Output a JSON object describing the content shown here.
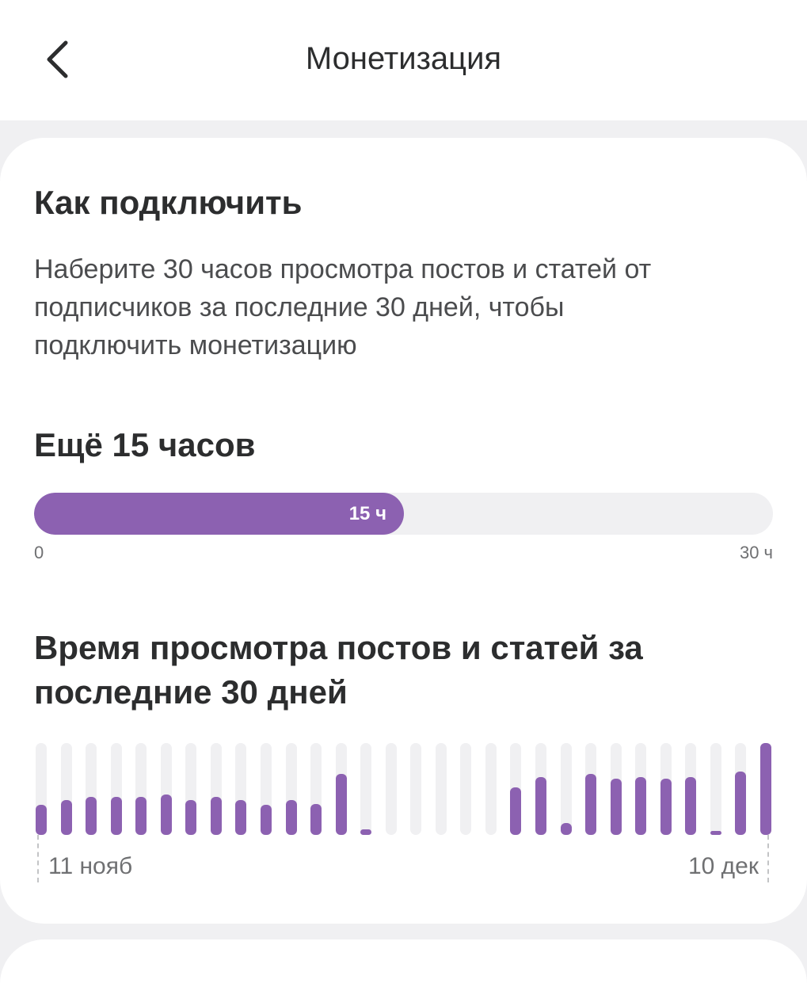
{
  "header": {
    "title": "Монетизация",
    "back_icon": "chevron-left-icon"
  },
  "how_to": {
    "title": "Как подключить",
    "description": "Наберите 30 часов просмотра постов и статей от подписчиков за последние 30 дней, чтобы подключить монетизацию"
  },
  "progress": {
    "title": "Ещё 15 часов",
    "value_label": "15 ч",
    "value": 15,
    "max": 30,
    "min_label": "0",
    "max_label": "30 ч"
  },
  "watch_chart": {
    "title": "Время просмотра постов и статей за последние 30 дней",
    "start_label": "11 нояб",
    "end_label": "10 дек"
  },
  "chart_data": {
    "type": "bar",
    "title": "Время просмотра постов и статей за последние 30 дней",
    "x": [
      "11 нояб",
      "",
      "",
      "",
      "",
      "",
      "",
      "",
      "",
      "",
      "",
      "",
      "",
      "",
      "",
      "",
      "",
      "",
      "",
      "",
      "",
      "",
      "",
      "",
      "",
      "",
      "",
      "",
      "",
      "10 дек"
    ],
    "values": [
      0.33,
      0.38,
      0.41,
      0.41,
      0.41,
      0.44,
      0.38,
      0.41,
      0.38,
      0.33,
      0.38,
      0.34,
      0.66,
      0.06,
      0,
      0,
      0,
      0,
      0,
      0.52,
      0.63,
      0.13,
      0.66,
      0.61,
      0.63,
      0.61,
      0.63,
      0.03,
      0.69,
      1.0
    ],
    "ylim": [
      0,
      1
    ],
    "grid": false,
    "colors": {
      "bar": "#8c61b1",
      "track": "#f0f0f2"
    }
  },
  "colors": {
    "accent": "#8c61b1",
    "background": "#f0f0f2",
    "text": "#2c2d2e"
  }
}
